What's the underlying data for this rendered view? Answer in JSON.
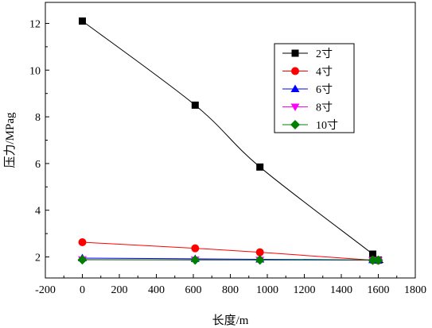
{
  "chart_data": {
    "type": "line",
    "xlabel": "长度/m",
    "ylabel": "压力/MPag",
    "xlim": [
      -200,
      1800
    ],
    "ylim": [
      1.1,
      12.9
    ],
    "xticks": [
      "-200",
      "0",
      "200",
      "400",
      "600",
      "800",
      "1000",
      "1200",
      "1400",
      "1600",
      "1800"
    ],
    "xtick_values": [
      -200,
      0,
      200,
      400,
      600,
      800,
      1000,
      1200,
      1400,
      1600,
      1800
    ],
    "yticks": [
      "2",
      "4",
      "6",
      "8",
      "10",
      "12"
    ],
    "ytick_values": [
      2,
      4,
      6,
      8,
      10,
      12
    ],
    "grid": false,
    "legend_position": "top-right",
    "series": [
      {
        "name": "2寸",
        "color": "#000000",
        "marker": "square",
        "line_style": "smooth",
        "x": [
          0,
          610,
          960,
          1570,
          1600
        ],
        "y": [
          12.1,
          8.5,
          5.85,
          2.12,
          1.87
        ]
      },
      {
        "name": "4寸",
        "color": "#ff0000",
        "marker": "circle",
        "line_style": "straight",
        "x": [
          0,
          610,
          960,
          1570,
          1600
        ],
        "y": [
          2.63,
          2.37,
          2.2,
          1.86,
          1.85
        ]
      },
      {
        "name": "6寸",
        "color": "#0000ff",
        "marker": "triangle-up",
        "line_style": "straight",
        "x": [
          0,
          610,
          960,
          1570,
          1600
        ],
        "y": [
          1.95,
          1.92,
          1.9,
          1.87,
          1.86
        ]
      },
      {
        "name": "8寸",
        "color": "#ff00ff",
        "marker": "triangle-down",
        "line_style": "straight",
        "x": [
          0,
          610,
          960,
          1570,
          1600
        ],
        "y": [
          1.89,
          1.88,
          1.87,
          1.86,
          1.86
        ]
      },
      {
        "name": "10寸",
        "color": "#008000",
        "marker": "diamond",
        "line_style": "straight",
        "x": [
          0,
          610,
          960,
          1570,
          1600
        ],
        "y": [
          1.88,
          1.87,
          1.87,
          1.86,
          1.86
        ]
      }
    ]
  }
}
